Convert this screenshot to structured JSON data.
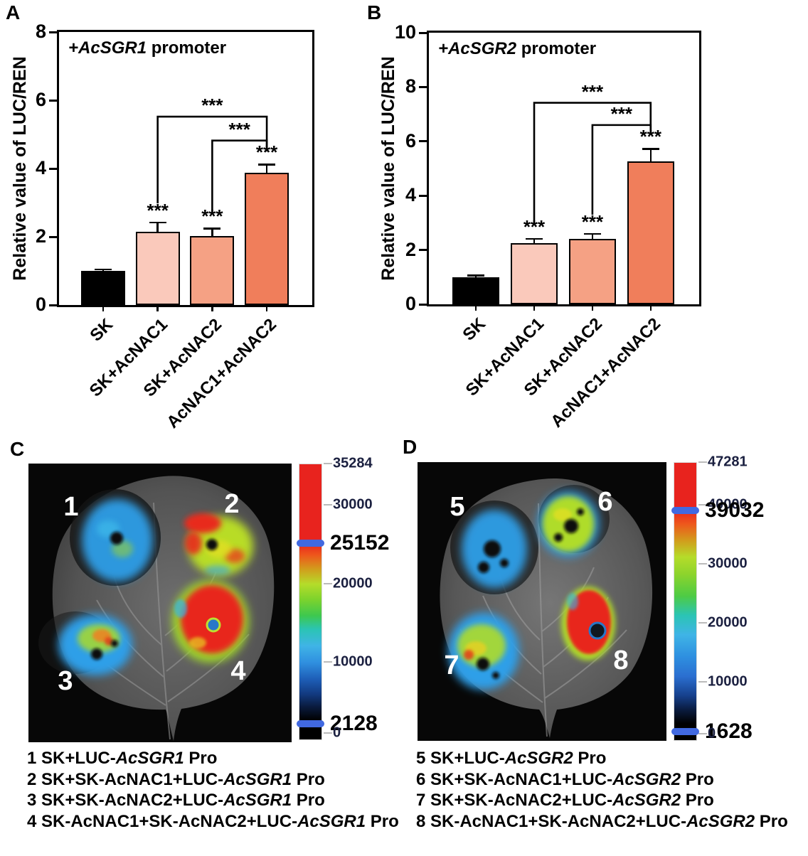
{
  "panels": {
    "a": "A",
    "b": "B",
    "c": "C",
    "d": "D"
  },
  "chart_data": [
    {
      "id": "A",
      "type": "bar",
      "title_gene": "+AcSGR1",
      "title_rest": " promoter",
      "ylabel": "Relative value of LUC/REN",
      "ylim": [
        0,
        8
      ],
      "yticks": [
        0,
        2,
        4,
        6,
        8
      ],
      "grid": false,
      "categories": [
        "SK",
        "SK+AcNAC1",
        "SK+AcNAC2",
        "AcNAC1+AcNAC2"
      ],
      "values": [
        1.0,
        2.15,
        2.03,
        3.88
      ],
      "errors": [
        0.05,
        0.27,
        0.22,
        0.24
      ],
      "bar_colors": [
        "#000000",
        "#FAC9BB",
        "#F5A184",
        "#F07E5B"
      ],
      "sig_labels": [
        "",
        "***",
        "***",
        "***"
      ],
      "brackets": [
        {
          "from": 1,
          "to": 3,
          "y": 5.52,
          "drop_from": 2.98,
          "drop_to": 4.5,
          "label": "***"
        },
        {
          "from": 2,
          "to": 3,
          "y": 4.82,
          "drop_from": 2.72,
          "drop_to": 4.5,
          "label": "***"
        }
      ]
    },
    {
      "id": "B",
      "type": "bar",
      "title_gene": "+AcSGR2",
      "title_rest": " promoter",
      "ylabel": "Relative value of LUC/REN",
      "ylim": [
        0,
        10
      ],
      "yticks": [
        0,
        2,
        4,
        6,
        8,
        10
      ],
      "grid": false,
      "categories": [
        "SK",
        "SK+AcNAC1",
        "SK+AcNAC2",
        "AcNAC1+AcNAC2"
      ],
      "values": [
        1.0,
        2.25,
        2.4,
        5.26
      ],
      "errors": [
        0.07,
        0.17,
        0.2,
        0.46
      ],
      "bar_colors": [
        "#000000",
        "#FAC9BB",
        "#F5A184",
        "#F07E5B"
      ],
      "sig_labels": [
        "",
        "***",
        "***",
        "***"
      ],
      "brackets": [
        {
          "from": 1,
          "to": 3,
          "y": 7.42,
          "drop_from": 3.0,
          "drop_to": 6.28,
          "label": "***"
        },
        {
          "from": 2,
          "to": 3,
          "y": 6.6,
          "drop_from": 3.3,
          "drop_to": 6.28,
          "label": "***"
        }
      ]
    }
  ],
  "panelC": {
    "label": "C",
    "spot_numbers": [
      "1",
      "2",
      "3",
      "4"
    ],
    "colorbar": {
      "max": 35284,
      "marker_color": "#4169E1",
      "labels": [
        {
          "value": 35284,
          "text": "35284",
          "style": "small"
        },
        {
          "value": 30000,
          "text": "30000",
          "style": "small"
        },
        {
          "value": 25152,
          "text": "25152",
          "style": "big"
        },
        {
          "value": 20000,
          "text": "20000",
          "style": "small"
        },
        {
          "value": 10000,
          "text": "10000",
          "style": "small"
        },
        {
          "value": 2128,
          "text": "2128",
          "style": "big"
        },
        {
          "value": 0,
          "text": "0",
          "style": "small"
        }
      ],
      "markers": [
        25152,
        2128
      ]
    },
    "legend": [
      {
        "pre": "1 SK+LUC-",
        "gene": "AcSGR1",
        "post": " Pro"
      },
      {
        "pre": "2 SK+SK-AcNAC1+LUC-",
        "gene": "AcSGR1",
        "post": " Pro"
      },
      {
        "pre": "3 SK+SK-AcNAC2+LUC-",
        "gene": "AcSGR1",
        "post": " Pro"
      },
      {
        "pre": "4 SK-AcNAC1+SK-AcNAC2+LUC-",
        "gene": "AcSGR1",
        "post": " Pro"
      }
    ]
  },
  "panelD": {
    "label": "D",
    "spot_numbers": [
      "5",
      "6",
      "7",
      "8"
    ],
    "colorbar": {
      "max": 47281,
      "marker_color": "#4169E1",
      "labels": [
        {
          "value": 47281,
          "text": "47281",
          "style": "small"
        },
        {
          "value": 40000,
          "text": "40000",
          "style": "small"
        },
        {
          "value": 39032,
          "text": "39032",
          "style": "big"
        },
        {
          "value": 30000,
          "text": "30000",
          "style": "small"
        },
        {
          "value": 20000,
          "text": "20000",
          "style": "small"
        },
        {
          "value": 10000,
          "text": "10000",
          "style": "small"
        },
        {
          "value": 1628,
          "text": "1628",
          "style": "big"
        },
        {
          "value": 0,
          "text": "0",
          "style": "small"
        }
      ],
      "markers": [
        39032,
        1628
      ]
    },
    "legend": [
      {
        "pre": "5 SK+LUC-",
        "gene": "AcSGR2",
        "post": " Pro"
      },
      {
        "pre": "6 SK+SK-AcNAC1+LUC-",
        "gene": "AcSGR2",
        "post": " Pro"
      },
      {
        "pre": "7 SK+SK-AcNAC2+LUC-",
        "gene": "AcSGR2",
        "post": " Pro"
      },
      {
        "pre": "8 SK-AcNAC1+SK-AcNAC2+LUC-",
        "gene": "AcSGR2",
        "post": " Pro"
      }
    ]
  }
}
